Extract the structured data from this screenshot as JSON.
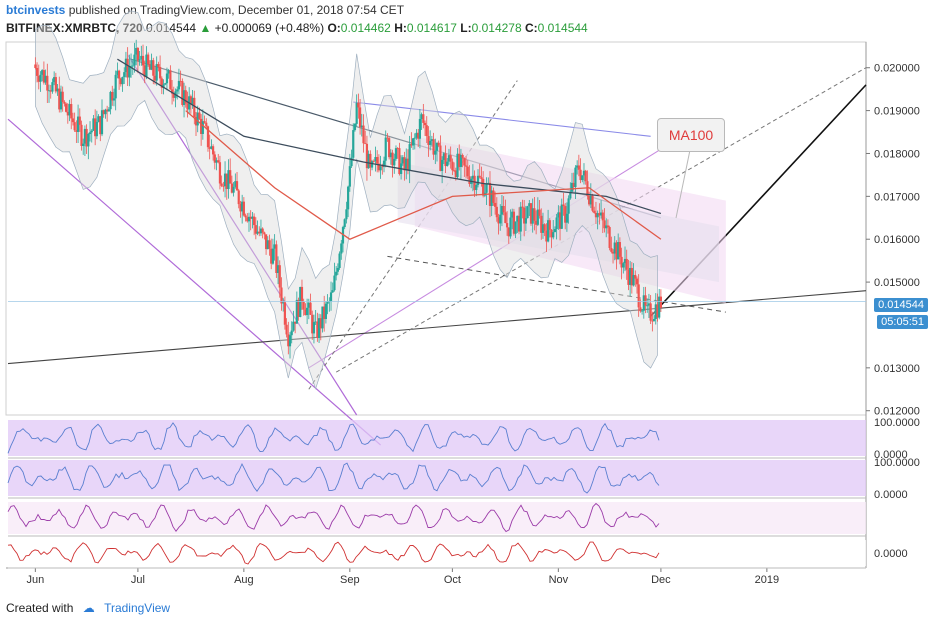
{
  "header": {
    "author": "btcinvests",
    "published_text": "published on TradingView.com, December 01, 2018 07:54 CET",
    "symbol": "BITFINEX:XMRBTC, 720",
    "last": "0.014544",
    "change": "+0.000069 (+0.48%)",
    "o_label": "O:",
    "o_val": "0.014462",
    "h_label": "H:",
    "h_val": "0.014617",
    "l_label": "L:",
    "l_val": "0.014278",
    "c_label": "C:",
    "c_val": "0.014544"
  },
  "footer": {
    "created_with": "Created with",
    "brand": "TradingView"
  },
  "annotation": {
    "label": "MA100"
  },
  "price_tags": {
    "last_price": "0.014544",
    "countdown": "05:05:51"
  },
  "colors": {
    "up": "#26a69a",
    "down": "#ef5350",
    "accent": "#2a7bd5",
    "ma": "#e04a3a",
    "channel": "#e8b5e8"
  },
  "chart_data": {
    "type": "candlestick",
    "symbol": "BITFINEX:XMRBTC",
    "timeframe": "720",
    "x_ticks": [
      "Jun",
      "Jul",
      "Aug",
      "Sep",
      "Oct",
      "Nov",
      "Dec",
      "2019"
    ],
    "y_ticks": [
      "0.020000",
      "0.019000",
      "0.018000",
      "0.017000",
      "0.016000",
      "0.015000",
      "0.013000",
      "0.012000"
    ],
    "ylim": [
      0.0119,
      0.0206
    ],
    "close_path": [
      [
        "2018-06-01",
        0.02
      ],
      [
        "2018-06-05",
        0.0197
      ],
      [
        "2018-06-10",
        0.019
      ],
      [
        "2018-06-15",
        0.0184
      ],
      [
        "2018-06-20",
        0.0187
      ],
      [
        "2018-06-25",
        0.0198
      ],
      [
        "2018-07-01",
        0.0202
      ],
      [
        "2018-07-05",
        0.0199
      ],
      [
        "2018-07-10",
        0.0197
      ],
      [
        "2018-07-15",
        0.0193
      ],
      [
        "2018-07-20",
        0.0186
      ],
      [
        "2018-07-25",
        0.0176
      ],
      [
        "2018-08-01",
        0.0168
      ],
      [
        "2018-08-05",
        0.0162
      ],
      [
        "2018-08-10",
        0.0156
      ],
      [
        "2018-08-14",
        0.0138
      ],
      [
        "2018-08-18",
        0.0147
      ],
      [
        "2018-08-22",
        0.0138
      ],
      [
        "2018-08-27",
        0.0147
      ],
      [
        "2018-09-01",
        0.0175
      ],
      [
        "2018-09-03",
        0.0191
      ],
      [
        "2018-09-07",
        0.0175
      ],
      [
        "2018-09-12",
        0.0182
      ],
      [
        "2018-09-17",
        0.0176
      ],
      [
        "2018-09-22",
        0.0188
      ],
      [
        "2018-09-27",
        0.0179
      ],
      [
        "2018-10-03",
        0.0177
      ],
      [
        "2018-10-10",
        0.0173
      ],
      [
        "2018-10-17",
        0.0163
      ],
      [
        "2018-10-24",
        0.0166
      ],
      [
        "2018-10-29",
        0.0162
      ],
      [
        "2018-11-03",
        0.0166
      ],
      [
        "2018-11-07",
        0.0177
      ],
      [
        "2018-11-13",
        0.0165
      ],
      [
        "2018-11-19",
        0.0156
      ],
      [
        "2018-11-23",
        0.015
      ],
      [
        "2018-11-27",
        0.0142
      ],
      [
        "2018-12-01",
        0.014544
      ]
    ],
    "lines": [
      {
        "name": "MA100",
        "points": [
          [
            "2018-06-25",
            0.0202
          ],
          [
            "2018-08-01",
            0.0184
          ],
          [
            "2018-09-05",
            0.0178
          ],
          [
            "2018-10-10",
            0.0173
          ],
          [
            "2018-11-15",
            0.017
          ],
          [
            "2018-12-01",
            0.0166
          ]
        ]
      },
      {
        "name": "MA50",
        "points": [
          [
            "2018-07-15",
            0.019
          ],
          [
            "2018-08-10",
            0.0172
          ],
          [
            "2018-09-01",
            0.016
          ],
          [
            "2018-10-01",
            0.017
          ],
          [
            "2018-11-10",
            0.0172
          ],
          [
            "2018-12-01",
            0.016
          ]
        ]
      }
    ],
    "indicator_panes": [
      {
        "ticks": [
          "100.0000",
          "0.0000"
        ]
      },
      {
        "ticks": [
          "100.0000",
          "0.0000"
        ]
      },
      {
        "ticks": []
      },
      {
        "ticks": [
          "0.0000"
        ]
      }
    ]
  }
}
